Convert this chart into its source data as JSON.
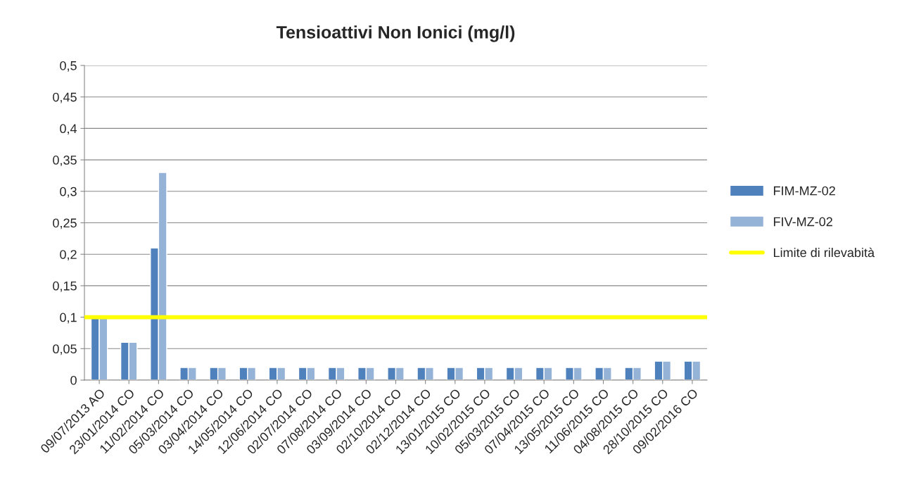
{
  "chart_data": {
    "type": "bar",
    "title": "Tensioattivi Non Ionici (mg/l)",
    "categories": [
      "09/07/2013 AO",
      "23/01/2014 CO",
      "11/02/2014 CO",
      "05/03/2014 CO",
      "03/04/2014 CO",
      "14/05/2014 CO",
      "12/06/2014 CO",
      "02/07/2014 CO",
      "07/08/2014 CO",
      "03/09/2014 CO",
      "02/10/2014 CO",
      "02/12/2014 CO",
      "13/01/2015 CO",
      "10/02/2015 CO",
      "05/03/2015 CO",
      "07/04/2015 CO",
      "13/05/2015 CO",
      "11/06/2015 CO",
      "04/08/2015 CO",
      "28/10/2015 CO",
      "09/02/2016 CO"
    ],
    "series": [
      {
        "name": "FIM-MZ-02",
        "color": "#4f81bd",
        "values": [
          0.1,
          0.06,
          0.21,
          0.02,
          0.02,
          0.02,
          0.02,
          0.02,
          0.02,
          0.02,
          0.02,
          0.02,
          0.02,
          0.02,
          0.02,
          0.02,
          0.02,
          0.02,
          0.02,
          0.03,
          0.03
        ]
      },
      {
        "name": "FIV-MZ-02",
        "color": "#95b3d7",
        "values": [
          0.1,
          0.06,
          0.33,
          0.02,
          0.02,
          0.02,
          0.02,
          0.02,
          0.02,
          0.02,
          0.02,
          0.02,
          0.02,
          0.02,
          0.02,
          0.02,
          0.02,
          0.02,
          0.02,
          0.03,
          0.03
        ]
      }
    ],
    "ref_lines": [
      {
        "axis": "y",
        "value": 0.1,
        "label": "Limite di rilevabità",
        "color": "#ffff00",
        "line_style": "solid"
      }
    ],
    "ylim": [
      0,
      0.5
    ],
    "yticks": [
      0,
      {
        "value": 0.05,
        "label": "0,05"
      },
      {
        "value": 0.1,
        "label": "0,1"
      },
      {
        "value": 0.15,
        "label": "0,15"
      },
      {
        "value": 0.2,
        "label": "0,2"
      },
      {
        "value": 0.25,
        "label": "0,25"
      },
      {
        "value": 0.3,
        "label": "0,3"
      },
      {
        "value": 0.35,
        "label": "0,35"
      },
      {
        "value": 0.4,
        "label": "0,4"
      },
      {
        "value": 0.45,
        "label": "0,45"
      },
      {
        "value": 0.5,
        "label": "0,5"
      }
    ],
    "grid": "y",
    "legend": "right"
  }
}
